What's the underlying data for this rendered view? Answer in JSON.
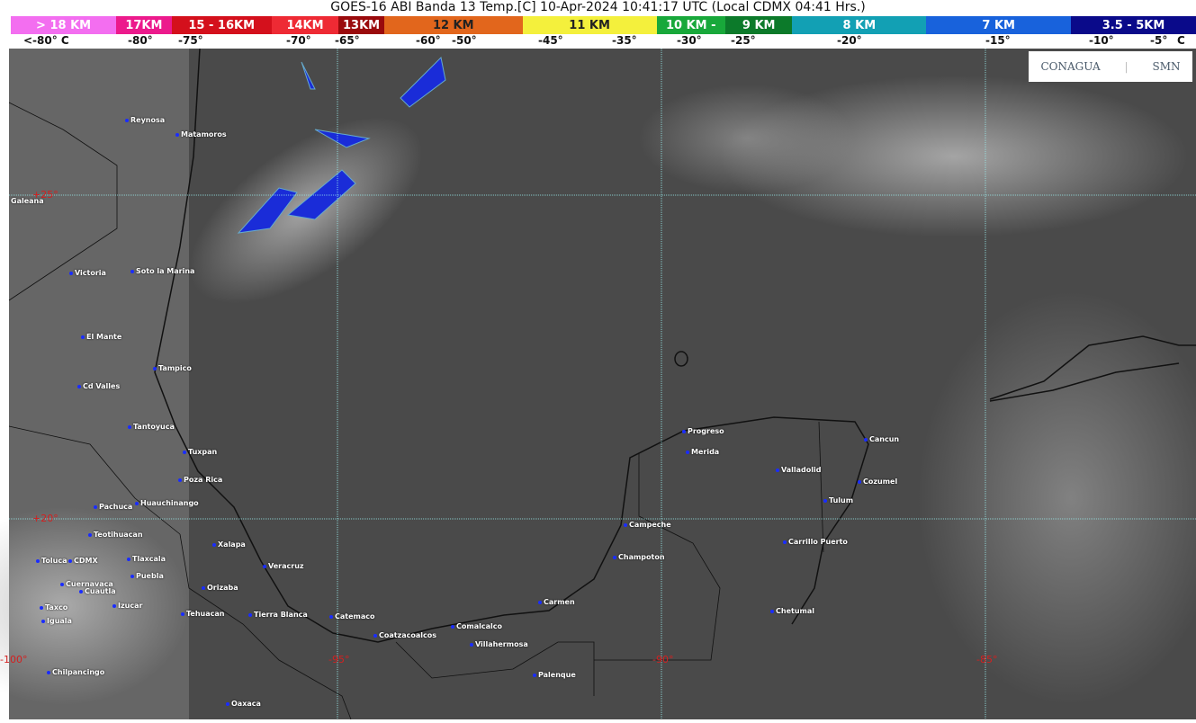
{
  "title": "GOES-16 ABI Banda 13 Temp.[C] 10-Apr-2024 10:41:17 UTC (Local CDMX  04:41 Hrs.)",
  "scale": [
    {
      "label": "> 18 KM",
      "color": "#f36ef0"
    },
    {
      "label": "17KM",
      "color": "#ec1a8c"
    },
    {
      "label": "15 - 16KM",
      "color": "#d4101c"
    },
    {
      "label": "14KM",
      "color": "#ee2a34"
    },
    {
      "label": "13KM",
      "color": "#9a0a0c"
    },
    {
      "label": "12 KM",
      "color": "#e2661c"
    },
    {
      "label": "11 KM",
      "color": "#f4f03c"
    },
    {
      "label": "10 KM - ",
      "color": "#18a83a"
    },
    {
      "label": "9 KM",
      "color": "#0c7a2a"
    },
    {
      "label": "8 KM",
      "color": "#12a0b4"
    },
    {
      "label": "7 KM",
      "color": "#1862dc"
    },
    {
      "label": "3.5 - 5KM",
      "color": "#0a0a8a"
    }
  ],
  "temps": [
    "<-80° C",
    "-80°",
    "-75°",
    "-70°",
    "-65°",
    "-60°",
    "-50°",
    "-45°",
    "-35°",
    "-30°",
    "-25°",
    "-20°",
    "-15°",
    "-10°",
    "-5°",
    "C"
  ],
  "logo": {
    "conagua": "CONAGUA",
    "smn": "SMN"
  },
  "grid": {
    "lat": [
      "+25°",
      "+20°"
    ],
    "lon": [
      "-100°",
      "-95°",
      "-90°",
      "-85°"
    ]
  },
  "cities": [
    "Reynosa",
    "Matamoros",
    "Galeana",
    "Victoria",
    "Soto la Marina",
    "El Mante",
    "Tampico",
    "Cd Valles",
    "Tantoyuca",
    "Tuxpan",
    "Poza Rica",
    "Pachuca",
    "Huauchinango",
    "Teotihuacan",
    "Toluca",
    "CDMX",
    "Tlaxcala",
    "Puebla",
    "Cuernavaca",
    "Cuautla",
    "Xalapa",
    "Orizaba",
    "Izucar",
    "Taxco",
    "Iguala",
    "Tehuacan",
    "Tierra Blanca",
    "Veracruz",
    "Catemaco",
    "Coatzacoalcos",
    "Comalcalco",
    "Villahermosa",
    "Palenque",
    "Carmen",
    "Champoton",
    "Campeche",
    "Progreso",
    "Merida",
    "Valladolid",
    "Cancun",
    "Cozumel",
    "Tulum",
    "Carrillo Puerto",
    "Chetumal",
    "Chilpancingo",
    "Oaxaca"
  ]
}
